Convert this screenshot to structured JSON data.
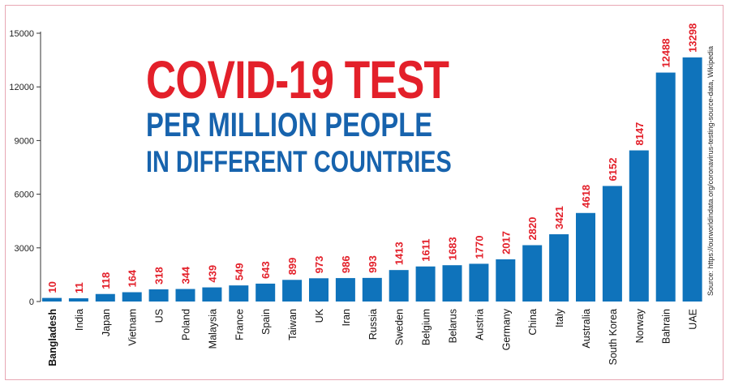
{
  "headline": {
    "line1": "COVID-19 TEST",
    "line2": "PER MILLION PEOPLE",
    "line3": "IN DIFFERENT COUNTRIES"
  },
  "source": "Source: https://ourworldindata.org/coronavirus-testing-source-data, Wikipedia",
  "colors": {
    "bar": "#0f73bb",
    "label": "#e3202a",
    "title_red": "#e3202a",
    "title_blue": "#1763ad"
  },
  "chart_data": {
    "type": "bar",
    "categories": [
      "Bangladesh",
      "India",
      "Japan",
      "Vietnam",
      "US",
      "Poland",
      "Malaysia",
      "France",
      "Spain",
      "Taiwan",
      "UK",
      "Iran",
      "Russia",
      "Sweden",
      "Belgium",
      "Belarus",
      "Austria",
      "Germany",
      "China",
      "Italy",
      "Australia",
      "South Korea",
      "Norway",
      "Bahrain",
      "UAE"
    ],
    "values": [
      10,
      11,
      118,
      164,
      318,
      344,
      439,
      549,
      643,
      899,
      973,
      986,
      993,
      1413,
      1611,
      1683,
      1770,
      2017,
      2820,
      3421,
      4618,
      6152,
      8147,
      12488,
      13298
    ],
    "data_labels": [
      "10",
      "11",
      "118",
      "164",
      "318",
      "344",
      "439",
      "549",
      "643",
      "899",
      "973",
      "986",
      "993",
      "1413",
      "1611",
      "1683",
      "1770",
      "2017",
      "2820",
      "3421",
      "4618",
      "6152",
      "8147",
      "12488",
      "13298"
    ],
    "bar_heights_shown": [
      200,
      180,
      420,
      520,
      680,
      700,
      790,
      900,
      1000,
      1210,
      1300,
      1310,
      1320,
      1760,
      1960,
      2030,
      2110,
      2360,
      3150,
      3760,
      4950,
      6460,
      8450,
      12800,
      13650
    ],
    "yticks": [
      "0",
      "3000",
      "6000",
      "9000",
      "12000",
      "15000"
    ],
    "ylim": [
      0,
      15000
    ],
    "emphasized_category": "Bangladesh",
    "title": "COVID-19 TEST PER MILLION PEOPLE IN DIFFERENT COUNTRIES",
    "xlabel": "",
    "ylabel": "",
    "grid": false,
    "legend": "none"
  }
}
